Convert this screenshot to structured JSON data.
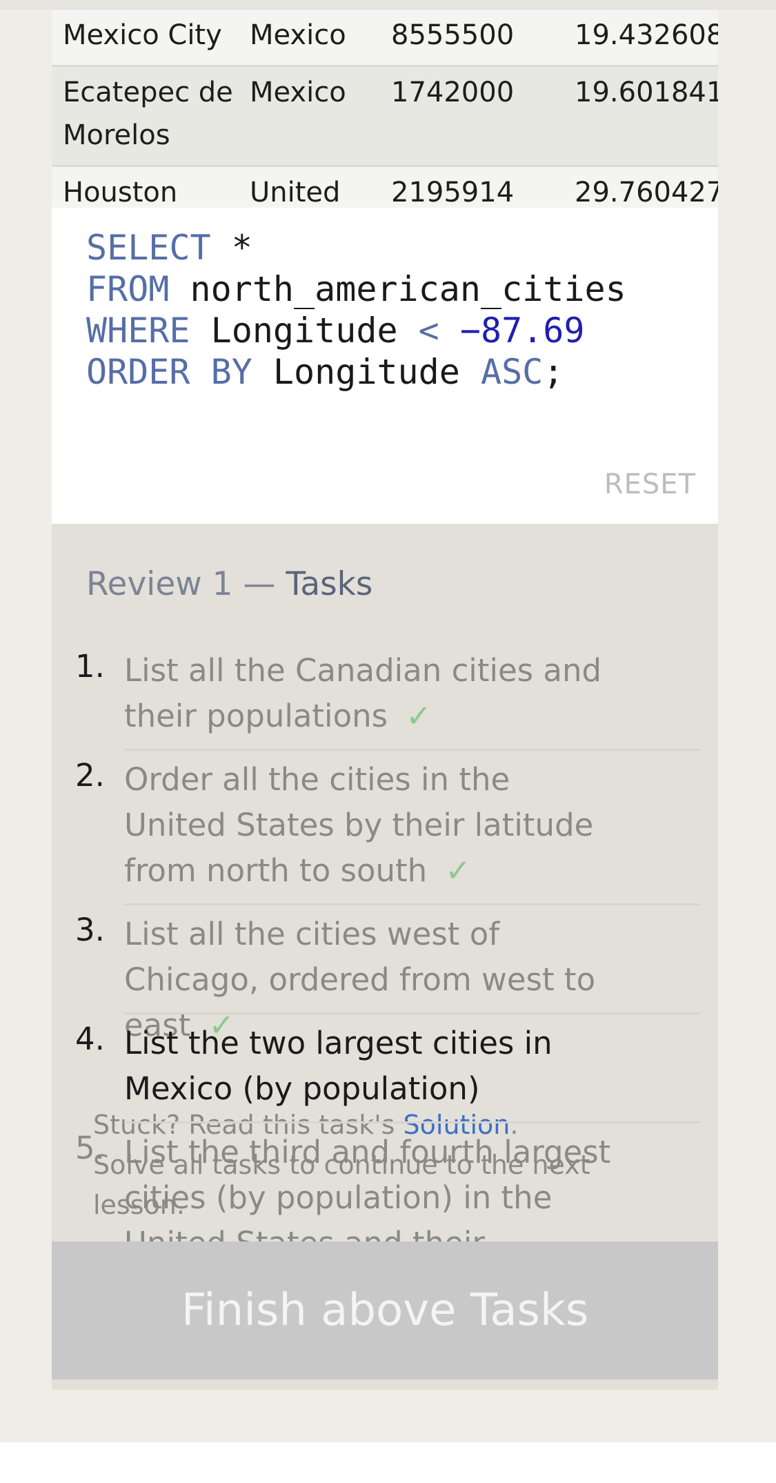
{
  "results": {
    "rows": [
      {
        "city": "Mexico City",
        "country": "Mexico",
        "population": "8555500",
        "latitude": "19.432608"
      },
      {
        "city": "Ecatepec de Morelos",
        "country": "Mexico",
        "population": "1742000",
        "latitude": "19.601841"
      },
      {
        "city": "Houston",
        "country": "United",
        "population": "2195914",
        "latitude": "29.760427"
      }
    ]
  },
  "editor": {
    "line1": {
      "kw": "SELECT",
      "rest": " *"
    },
    "line2": {
      "kw": "FROM",
      "rest": " north_american_cities"
    },
    "line3": {
      "kw": "WHERE",
      "col": " Longitude ",
      "op": "<",
      "num": " −87.69"
    },
    "line4": {
      "kw": "ORDER BY",
      "col": " Longitude ",
      "kw2": "ASC",
      "end": ";"
    },
    "reset_label": "RESET"
  },
  "tasks": {
    "title_prefix": "Review 1 — ",
    "title_word": "Tasks",
    "items": [
      {
        "num": "1.",
        "text": "List all the Canadian cities and their populations",
        "check": "✓"
      },
      {
        "num": "2.",
        "text": "Order all the cities in the United States by their latitude from north to south",
        "check": "✓"
      },
      {
        "num": "3.",
        "text": "List all the cities west of Chicago, ordered from west to east",
        "check": "✓"
      },
      {
        "num": "4.",
        "text": "List the two largest cities in Mexico (by population)"
      },
      {
        "num": "5.",
        "text": "List the third and fourth largest cities (by population) in the United States and their population"
      }
    ],
    "hint_prefix": "Stuck? Read this task's ",
    "hint_link": "Solution",
    "hint_suffix": ".",
    "hint2": "Solve all tasks to continue to the next lesson."
  },
  "finish_label": "Finish above Tasks"
}
